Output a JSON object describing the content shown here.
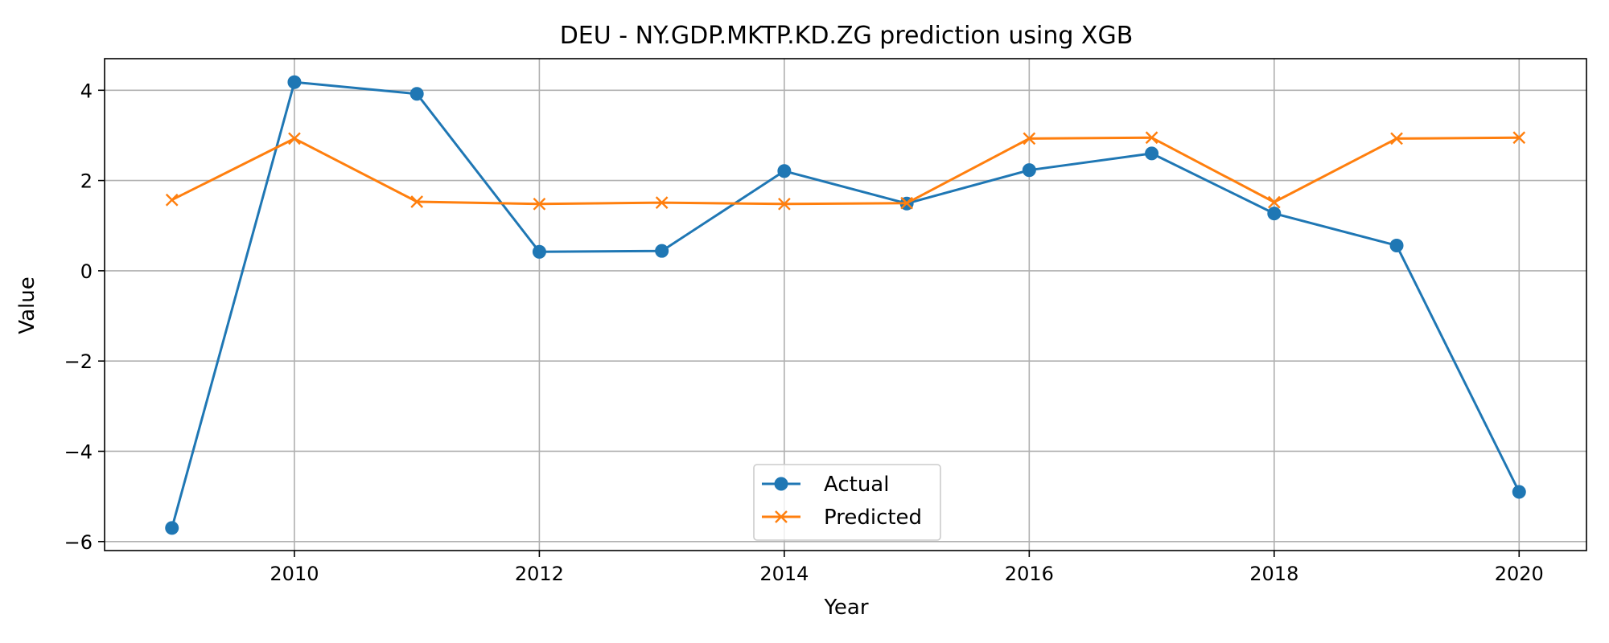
{
  "chart_data": {
    "type": "line",
    "title": "DEU - NY.GDP.MKTP.KD.ZG prediction using XGB",
    "xlabel": "Year",
    "ylabel": "Value",
    "x": [
      2009,
      2010,
      2011,
      2012,
      2013,
      2014,
      2015,
      2016,
      2017,
      2018,
      2019,
      2020
    ],
    "xlim": [
      2008.45,
      2020.55
    ],
    "ylim": [
      -6.2,
      4.7
    ],
    "xticks": [
      2010,
      2012,
      2014,
      2016,
      2018,
      2020
    ],
    "yticks": [
      -6,
      -4,
      -2,
      0,
      2,
      4
    ],
    "ytick_labels": [
      "−6",
      "−4",
      "−2",
      "0",
      "2",
      "4"
    ],
    "grid": true,
    "legend_position": "lower-center",
    "series": [
      {
        "name": "Actual",
        "color": "#1f77b4",
        "marker": "circle",
        "values": [
          -5.7,
          4.18,
          3.92,
          0.42,
          0.44,
          2.21,
          1.49,
          2.23,
          2.6,
          1.27,
          0.56,
          -4.9
        ]
      },
      {
        "name": "Predicted",
        "color": "#ff7f0e",
        "marker": "x",
        "values": [
          1.57,
          2.93,
          1.53,
          1.48,
          1.51,
          1.48,
          1.5,
          2.93,
          2.95,
          1.52,
          2.93,
          2.95
        ]
      }
    ]
  }
}
